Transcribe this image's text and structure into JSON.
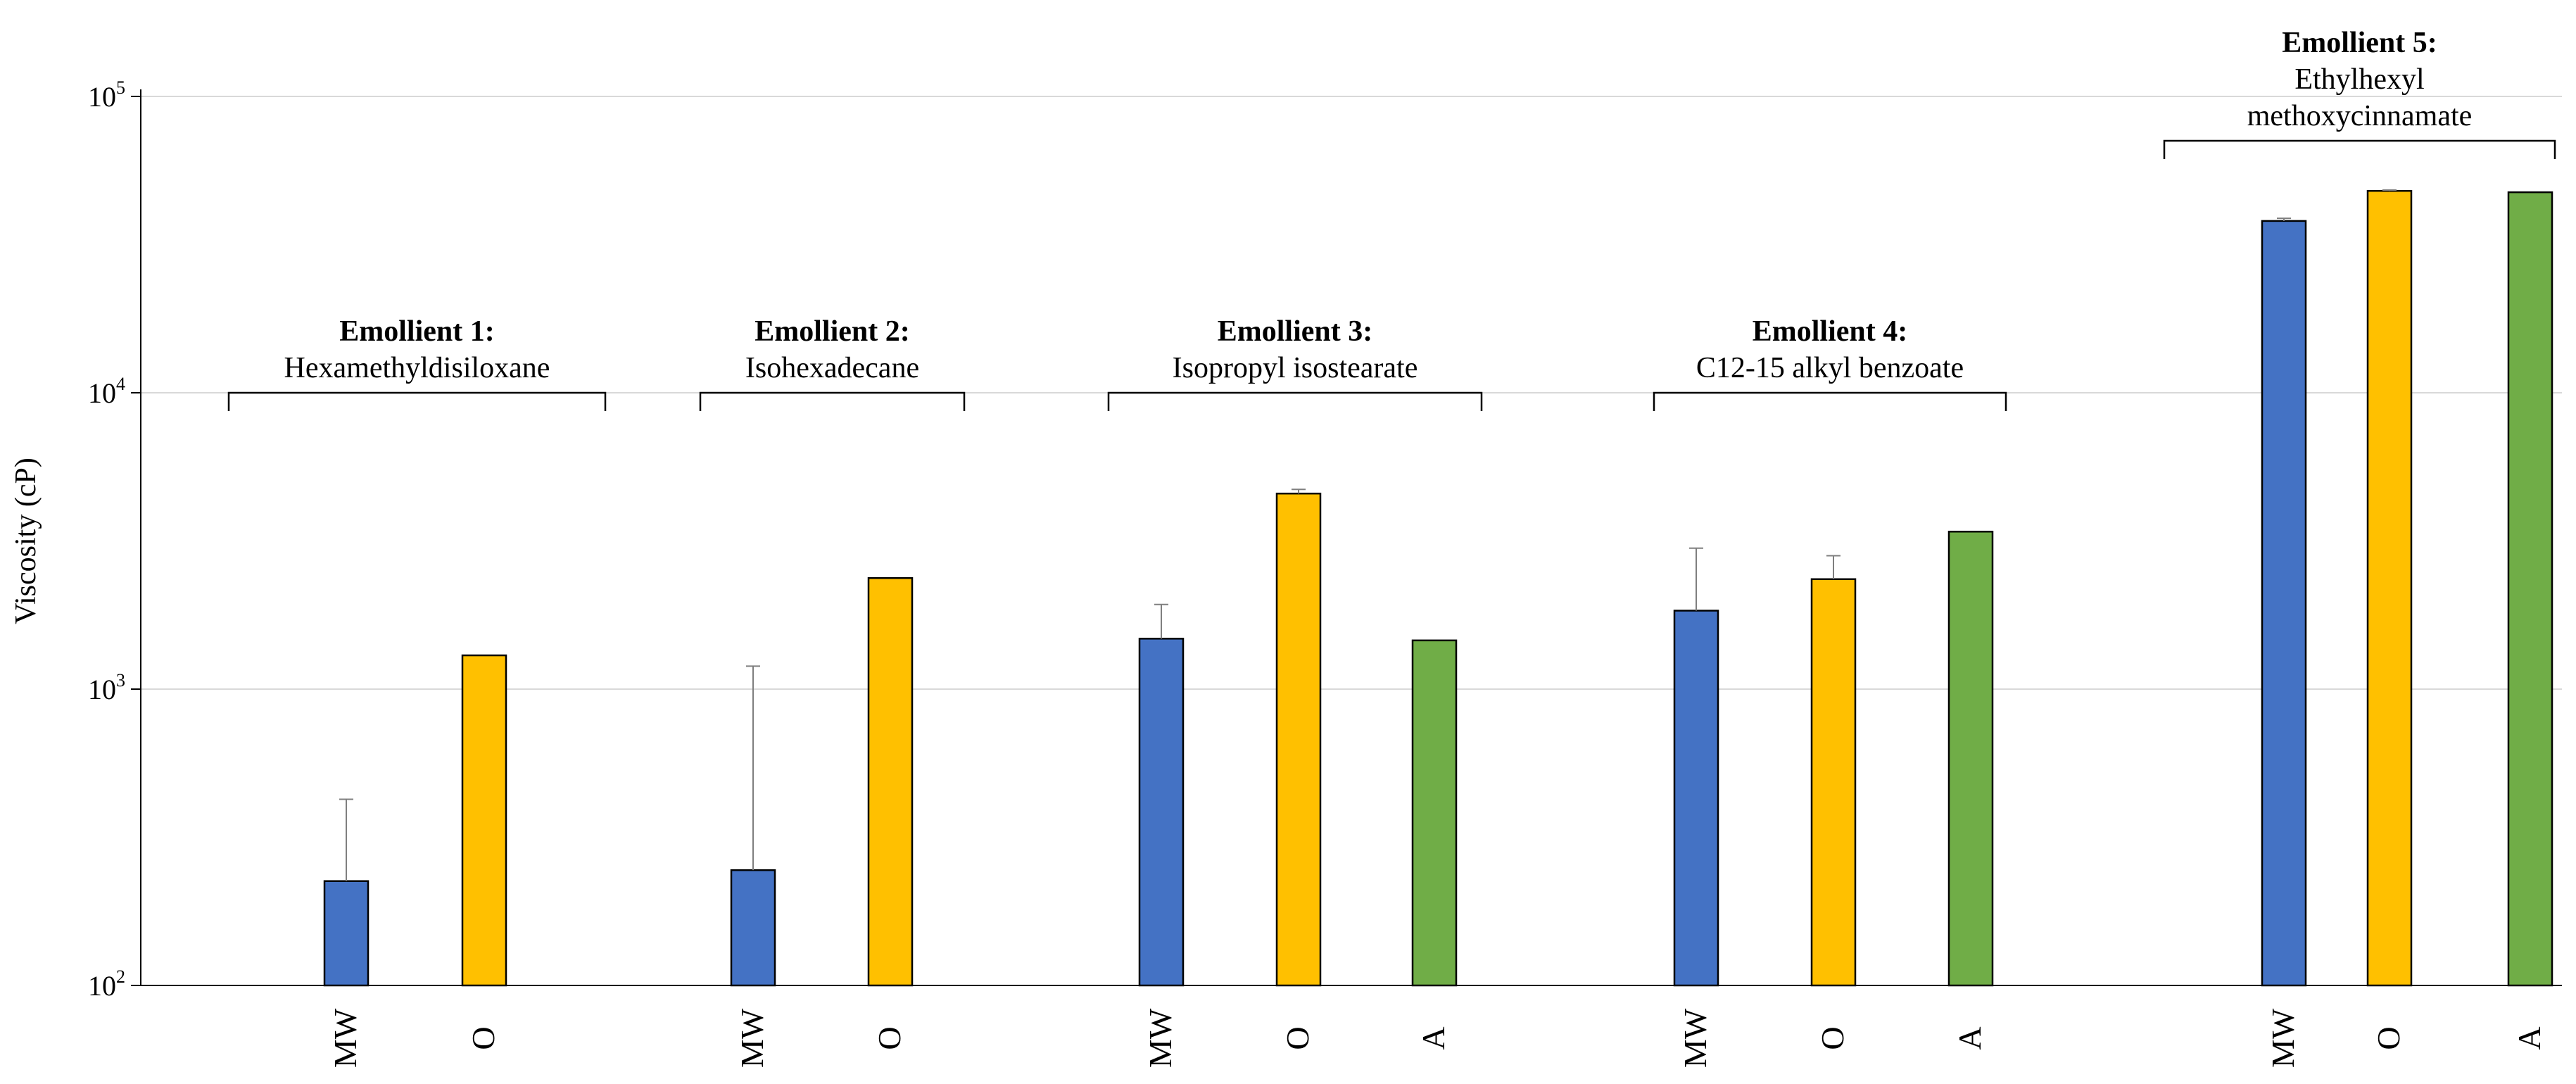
{
  "chart_data": {
    "type": "bar",
    "scale": "log",
    "ylabel": "Viscosity (cP)",
    "ylim": [
      100,
      100000
    ],
    "yticks": [
      {
        "value": 100,
        "base": "10",
        "exp": "2"
      },
      {
        "value": 1000,
        "base": "10",
        "exp": "3"
      },
      {
        "value": 10000,
        "base": "10",
        "exp": "4"
      },
      {
        "value": 100000,
        "base": "10",
        "exp": "5"
      }
    ],
    "grid": true,
    "series_colors": {
      "MW": "#4472C4",
      "O": "#FFC000",
      "A": "#70AD47"
    },
    "groups": [
      {
        "title": "Emollient 1:",
        "subtitle": [
          "Hexamethyldisiloxane"
        ],
        "bars": [
          {
            "label": "MW",
            "value": 225,
            "error": 200
          },
          {
            "label": "O",
            "value": 1300,
            "error": 0
          }
        ]
      },
      {
        "title": "Emollient 2:",
        "subtitle": [
          "Isohexadecane"
        ],
        "bars": [
          {
            "label": "MW",
            "value": 245,
            "error": 950
          },
          {
            "label": "O",
            "value": 2370,
            "error": 0
          }
        ]
      },
      {
        "title": "Emollient 3:",
        "subtitle": [
          "Isopropyl isostearate"
        ],
        "bars": [
          {
            "label": "MW",
            "value": 1480,
            "error": 450
          },
          {
            "label": "O",
            "value": 4570,
            "error": 150
          },
          {
            "label": "A",
            "value": 1460,
            "error": 0
          }
        ]
      },
      {
        "title": "Emollient 4:",
        "subtitle": [
          "C12-15 alkyl benzoate"
        ],
        "bars": [
          {
            "label": "MW",
            "value": 1840,
            "error": 1150
          },
          {
            "label": "O",
            "value": 2350,
            "error": 470
          },
          {
            "label": "A",
            "value": 3400,
            "error": 0
          }
        ]
      },
      {
        "title": "Emollient 5:",
        "subtitle": [
          "Ethylhexyl",
          "methoxycinnamate"
        ],
        "bars": [
          {
            "label": "MW",
            "value": 38000,
            "error": 800
          },
          {
            "label": "O",
            "value": 48000,
            "error": 300
          },
          {
            "label": "A",
            "value": 47500,
            "error": 0
          }
        ]
      }
    ]
  }
}
